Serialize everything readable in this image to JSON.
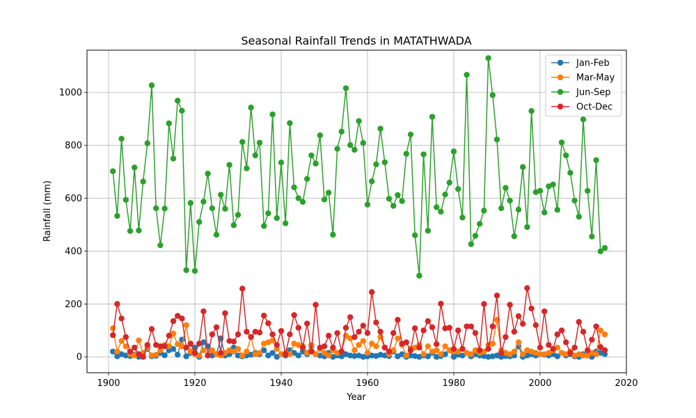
{
  "chart_data": {
    "type": "line",
    "title": "Seasonal Rainfall Trends in MATATHWADA",
    "xlabel": "Year",
    "ylabel": "Rainfall (mm)",
    "xlim": [
      1895,
      2020
    ],
    "ylim": [
      -60,
      1160
    ],
    "xticks": [
      1900,
      1920,
      1940,
      1960,
      1980,
      2000,
      2020
    ],
    "yticks": [
      0,
      200,
      400,
      600,
      800,
      1000
    ],
    "grid": true,
    "legend_position": "top-right",
    "x": [
      1901,
      1902,
      1903,
      1904,
      1905,
      1906,
      1907,
      1908,
      1909,
      1910,
      1911,
      1912,
      1913,
      1914,
      1915,
      1916,
      1917,
      1918,
      1919,
      1920,
      1921,
      1922,
      1923,
      1924,
      1925,
      1926,
      1927,
      1928,
      1929,
      1930,
      1931,
      1932,
      1933,
      1934,
      1935,
      1936,
      1937,
      1938,
      1939,
      1940,
      1941,
      1942,
      1943,
      1944,
      1945,
      1946,
      1947,
      1948,
      1949,
      1950,
      1951,
      1952,
      1953,
      1954,
      1955,
      1956,
      1957,
      1958,
      1959,
      1960,
      1961,
      1962,
      1963,
      1964,
      1965,
      1966,
      1967,
      1968,
      1969,
      1970,
      1971,
      1972,
      1973,
      1974,
      1975,
      1976,
      1977,
      1978,
      1979,
      1980,
      1981,
      1982,
      1983,
      1984,
      1985,
      1986,
      1987,
      1988,
      1989,
      1990,
      1991,
      1992,
      1993,
      1994,
      1995,
      1996,
      1997,
      1998,
      1999,
      2000,
      2001,
      2002,
      2003,
      2004,
      2005,
      2006,
      2007,
      2008,
      2009,
      2010,
      2011,
      2012,
      2013,
      2014,
      2015
    ],
    "series": [
      {
        "name": "Jan-Feb",
        "color": "#1f77b4",
        "values": [
          20,
          2,
          10,
          5,
          3,
          8,
          0,
          12,
          30,
          2,
          4,
          15,
          6,
          25,
          30,
          8,
          65,
          2,
          15,
          35,
          0,
          55,
          40,
          5,
          10,
          70,
          5,
          10,
          35,
          5,
          2,
          5,
          8,
          15,
          10,
          25,
          5,
          15,
          0,
          10,
          5,
          25,
          15,
          5,
          20,
          10,
          40,
          10,
          5,
          2,
          15,
          0,
          5,
          2,
          10,
          5,
          3,
          5,
          0,
          2,
          5,
          3,
          8,
          5,
          3,
          20,
          2,
          10,
          0,
          5,
          3,
          0,
          5,
          2,
          15,
          0,
          3,
          10,
          25,
          0,
          8,
          5,
          15,
          2,
          10,
          5,
          3,
          0,
          2,
          5,
          0,
          3,
          2,
          5,
          40,
          0,
          5,
          10,
          5,
          10,
          8,
          5,
          10,
          2,
          15,
          5,
          10,
          2,
          0,
          10,
          5,
          0,
          20,
          15,
          10
        ]
      },
      {
        "name": "Mar-May",
        "color": "#ff7f0e",
        "values": [
          108,
          20,
          60,
          40,
          10,
          5,
          62,
          15,
          35,
          5,
          8,
          25,
          45,
          40,
          88,
          48,
          40,
          120,
          20,
          10,
          5,
          25,
          5,
          25,
          10,
          5,
          15,
          25,
          20,
          30,
          5,
          20,
          75,
          10,
          15,
          50,
          55,
          62,
          30,
          10,
          15,
          10,
          50,
          45,
          40,
          15,
          45,
          10,
          30,
          15,
          5,
          25,
          15,
          20,
          80,
          70,
          25,
          45,
          60,
          15,
          50,
          40,
          75,
          35,
          10,
          25,
          70,
          45,
          5,
          30,
          35,
          45,
          10,
          40,
          20,
          25,
          10,
          40,
          25,
          20,
          20,
          30,
          15,
          10,
          25,
          15,
          20,
          45,
          50,
          140,
          25,
          15,
          10,
          20,
          55,
          10,
          25,
          20,
          15,
          10,
          10,
          15,
          25,
          35,
          15,
          10,
          20,
          5,
          10,
          5,
          5,
          15,
          10,
          100,
          85
        ]
      },
      {
        "name": "Jun-Sep",
        "color": "#2ca02c",
        "values": [
          702,
          533,
          825,
          594,
          476,
          716,
          478,
          663,
          808,
          1027,
          562,
          422,
          561,
          883,
          750,
          969,
          931,
          328,
          582,
          325,
          510,
          587,
          693,
          562,
          462,
          613,
          560,
          726,
          498,
          537,
          813,
          713,
          943,
          762,
          810,
          495,
          543,
          917,
          525,
          735,
          505,
          884,
          641,
          600,
          586,
          673,
          762,
          731,
          838,
          595,
          621,
          462,
          787,
          852,
          1016,
          801,
          783,
          892,
          809,
          576,
          664,
          728,
          863,
          736,
          598,
          571,
          612,
          589,
          768,
          841,
          460,
          307,
          766,
          477,
          908,
          566,
          549,
          614,
          659,
          777,
          635,
          527,
          1067,
          426,
          458,
          503,
          553,
          1130,
          990,
          822,
          562,
          639,
          591,
          456,
          557,
          718,
          491,
          930,
          623,
          628,
          546,
          645,
          652,
          556,
          811,
          762,
          696,
          591,
          530,
          898,
          628,
          455,
          744,
          399,
          412
        ]
      },
      {
        "name": "Oct-Dec",
        "color": "#d62728",
        "values": [
          82,
          200,
          145,
          75,
          20,
          35,
          10,
          0,
          45,
          105,
          45,
          40,
          40,
          80,
          135,
          155,
          145,
          35,
          50,
          15,
          50,
          172,
          5,
          85,
          112,
          15,
          165,
          60,
          58,
          85,
          258,
          95,
          75,
          95,
          92,
          156,
          127,
          85,
          45,
          98,
          10,
          85,
          158,
          110,
          35,
          126,
          20,
          197,
          35,
          40,
          80,
          35,
          90,
          20,
          110,
          150,
          75,
          95,
          118,
          90,
          245,
          130,
          95,
          35,
          20,
          90,
          140,
          50,
          55,
          25,
          108,
          35,
          100,
          135,
          112,
          48,
          201,
          108,
          110,
          30,
          100,
          30,
          115,
          115,
          90,
          25,
          200,
          30,
          115,
          232,
          15,
          75,
          197,
          95,
          154,
          125,
          260,
          183,
          120,
          35,
          172,
          45,
          30,
          85,
          100,
          55,
          15,
          35,
          132,
          95,
          25,
          65,
          115,
          37,
          25
        ]
      }
    ]
  }
}
